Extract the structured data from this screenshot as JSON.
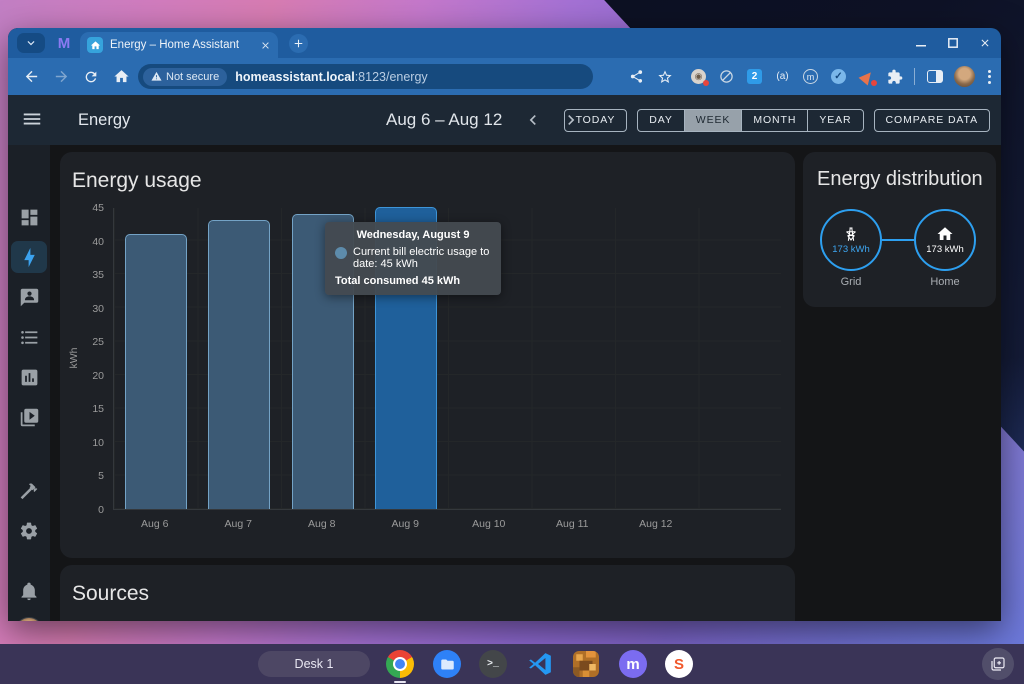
{
  "browser": {
    "tab_title": "Energy – Home Assistant",
    "security_chip": "Not secure",
    "url_host": "homeassistant.local",
    "url_rest": ":8123/energy",
    "frame_color": "#1f5c9f",
    "toolbar_color": "#2b6cb1"
  },
  "ha": {
    "header": {
      "title": "Energy",
      "date_range": "Aug 6 – Aug 12",
      "today": "TODAY",
      "periods": [
        "DAY",
        "WEEK",
        "MONTH",
        "YEAR"
      ],
      "selected_period": "WEEK",
      "compare": "COMPARE DATA"
    },
    "sidebar_items": [
      "menu",
      "dashboard",
      "energy",
      "assist",
      "logbook",
      "history",
      "media",
      "developer-tools",
      "settings",
      "notifications",
      "profile"
    ],
    "active_sidebar_item": "energy",
    "energy_usage": {
      "title": "Energy usage",
      "tooltip": {
        "title": "Wednesday, August 9",
        "line1": "Current bill electric usage to date: 45 kWh",
        "total": "Total consumed 45 kWh"
      }
    },
    "distribution": {
      "title": "Energy distribution",
      "accent": "#2d9fef",
      "nodes": [
        {
          "id": "grid",
          "label": "Grid",
          "value": "173 kWh",
          "value_color": "#3da5f0"
        },
        {
          "id": "home",
          "label": "Home",
          "value": "173 kWh",
          "value_color": "#ffffff"
        }
      ]
    },
    "sources": {
      "title": "Sources"
    }
  },
  "chart_data": {
    "type": "bar",
    "title": "Energy usage",
    "categories": [
      "Aug 6",
      "Aug 7",
      "Aug 8",
      "Aug 9",
      "Aug 10",
      "Aug 11",
      "Aug 12"
    ],
    "values": [
      41,
      43,
      44,
      45,
      null,
      null,
      null
    ],
    "ylabel": "kWh",
    "xlabel": "",
    "ylim": [
      0,
      45
    ],
    "ytick_step": 5,
    "grid": true,
    "legend": false,
    "highlighted_index": 3,
    "bar_color": "#3c5a75",
    "bar_border": "#74a3c6",
    "highlight_color": "#1f609b",
    "highlight_border": "#3e95d8"
  },
  "shelf": {
    "desk_label": "Desk 1",
    "apps": [
      "chrome",
      "files",
      "terminal",
      "vscode",
      "retro-game",
      "mastodon",
      "s-app"
    ],
    "active_app": "chrome"
  }
}
